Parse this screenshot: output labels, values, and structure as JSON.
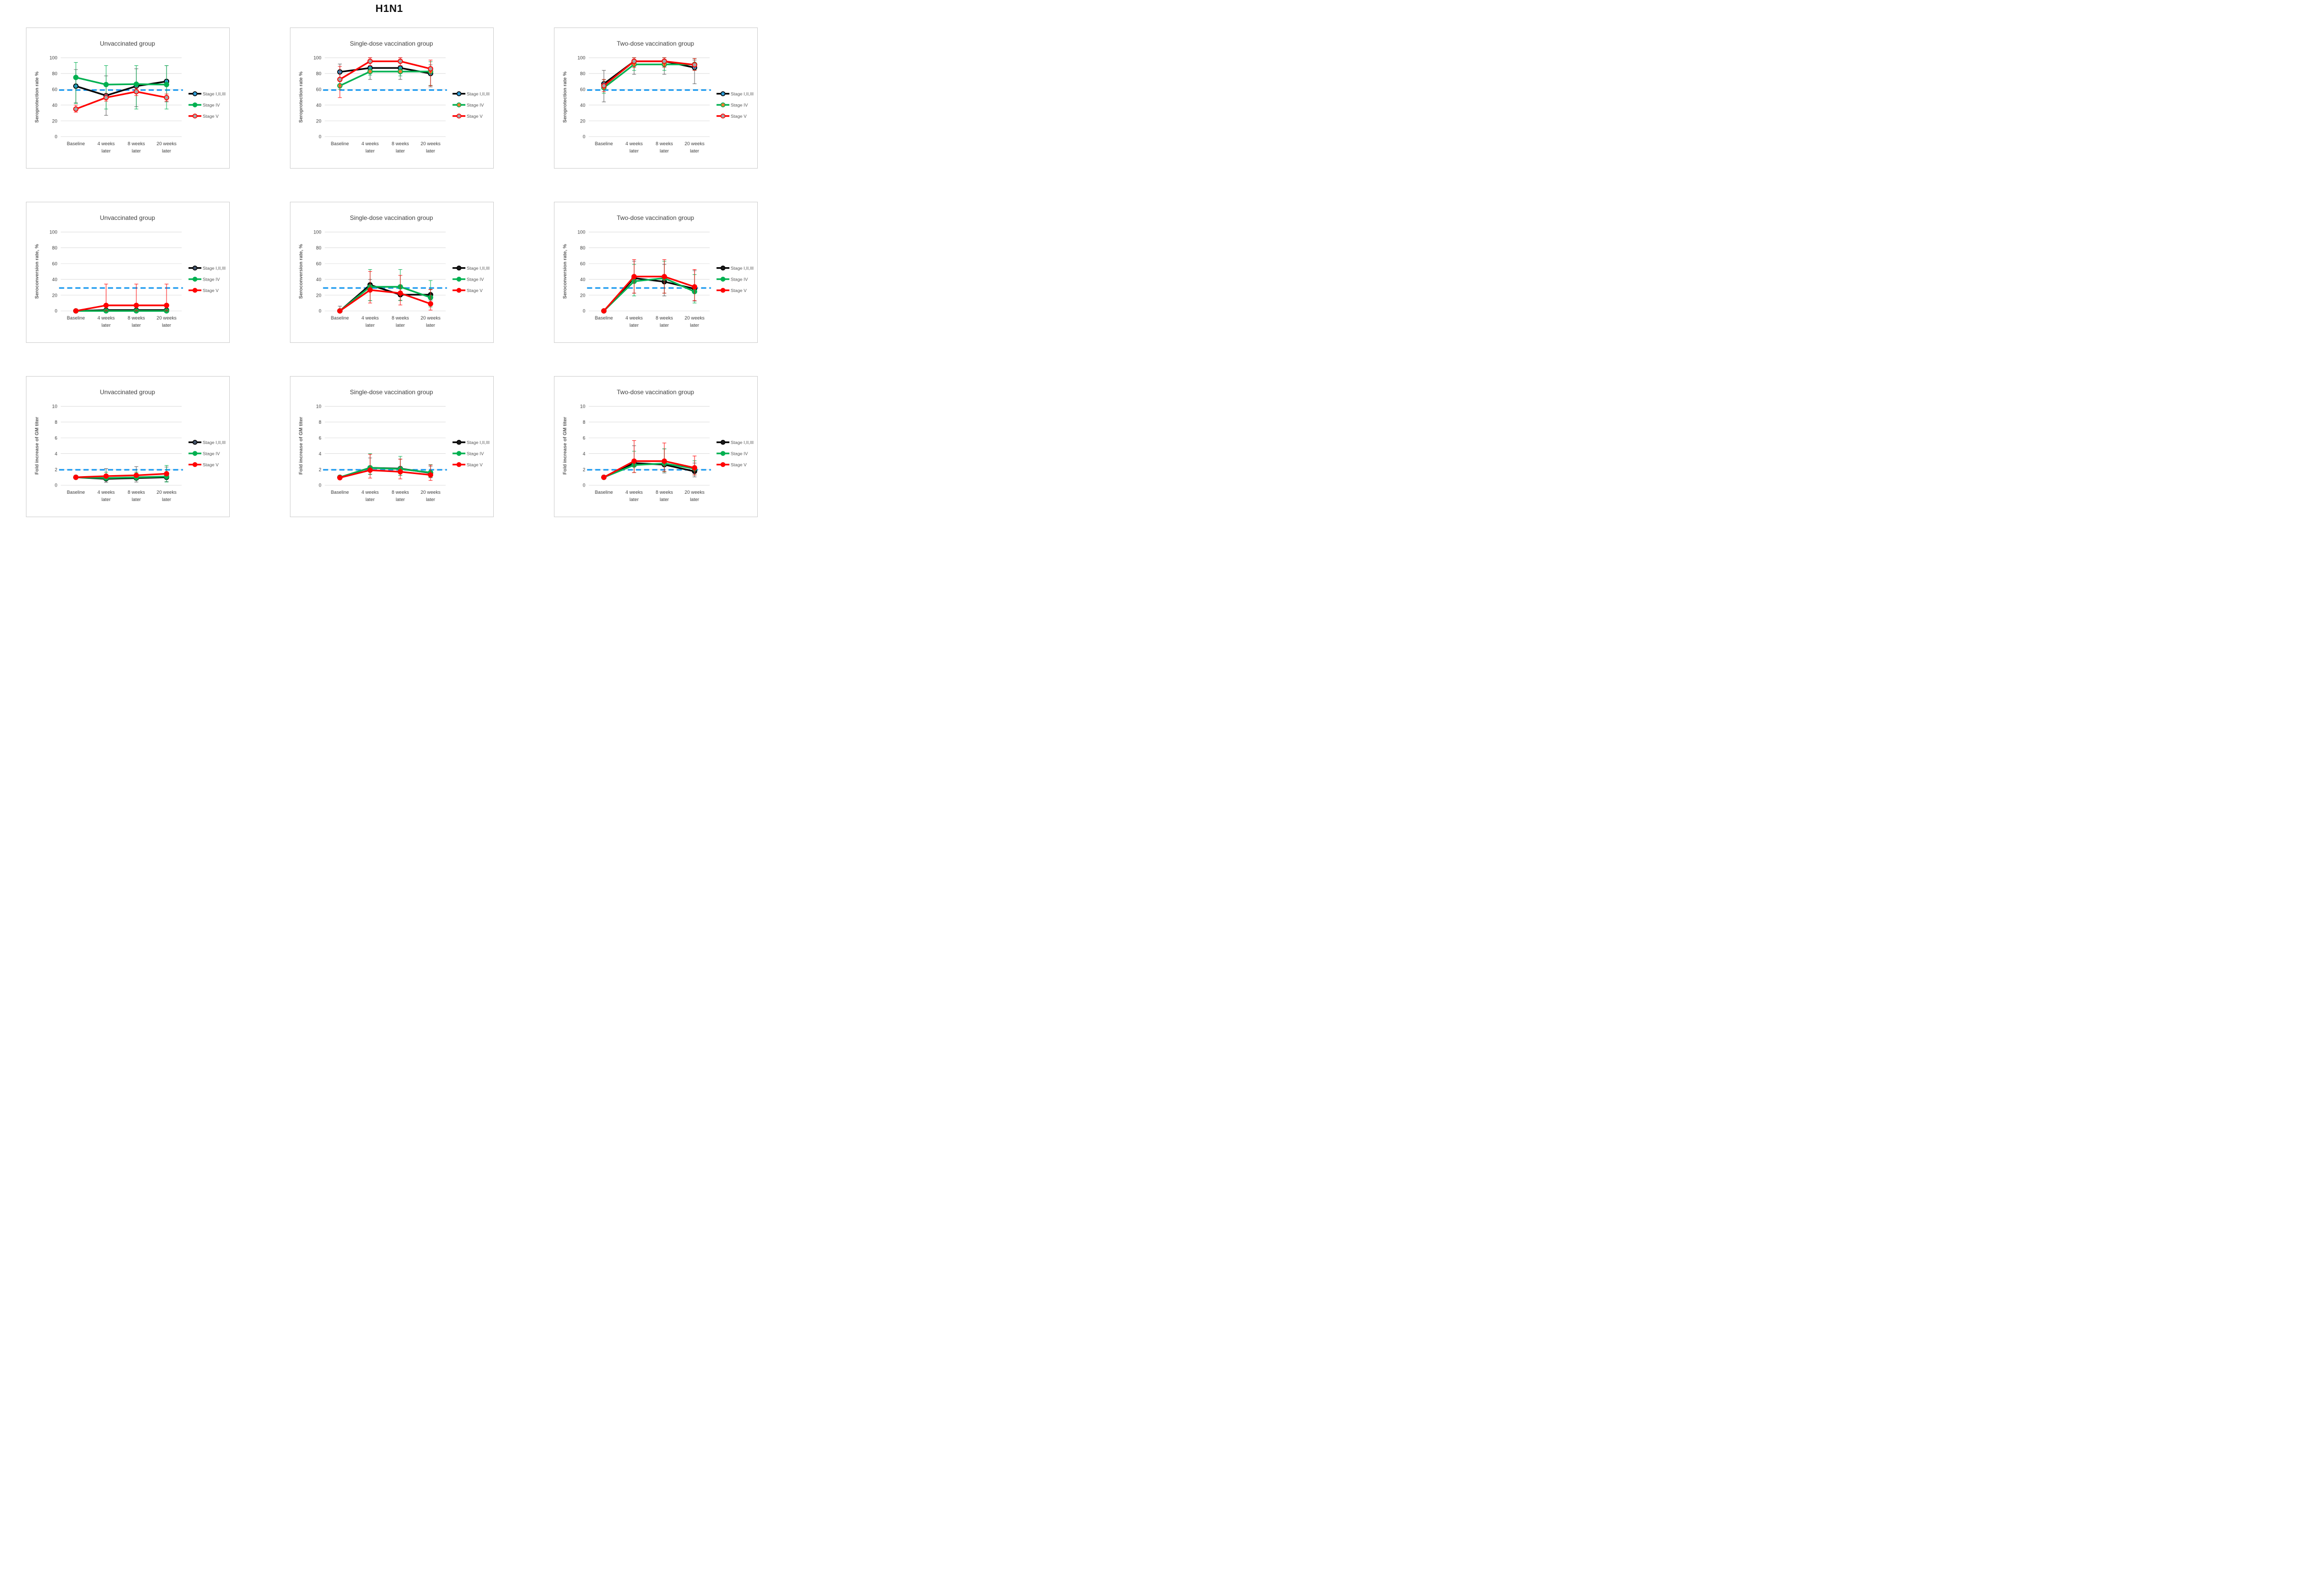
{
  "figure": {
    "title": "H1N1"
  },
  "legend_labels": [
    "Stage I,II,III",
    "Stage IV",
    "Stage V"
  ],
  "x_categories": [
    "Baseline",
    "4 weeks later",
    "8 weeks later",
    "20 weeks later"
  ],
  "x_tick_lines": [
    [
      "Baseline"
    ],
    [
      "4 weeks",
      "later"
    ],
    [
      "8 weeks",
      "later"
    ],
    [
      "20 weeks",
      "later"
    ]
  ],
  "colors": {
    "stage123_line": "#000000",
    "stage4_line": "#00B050",
    "stage5_line": "#FF0000",
    "marker_blue": "#2E9BD6",
    "marker_orange": "#ED7D31",
    "marker_gray": "#A6A6A6",
    "marker_navy": "#44546A",
    "threshold": "#1E9BF0",
    "grid": "#D9D9D9",
    "text": "#595959",
    "tick_text": "#404040",
    "title_text": "#3F3F3F",
    "panel_border": "#CFCFCF"
  },
  "chart_data": [
    {
      "id": "seroprotection-unvaccinated",
      "type": "line",
      "title": "Unvaccinated group",
      "ylabel": "Seroprotection rate %",
      "ylim": [
        0,
        100
      ],
      "yticks": [
        0,
        20,
        40,
        60,
        80,
        100
      ],
      "threshold": 59,
      "grid": true,
      "legend_position": "right",
      "categories": [
        "Baseline",
        "4 weeks later",
        "8 weeks later",
        "20 weeks later"
      ],
      "series": [
        {
          "name": "Stage I,II,III",
          "color": "#000000",
          "marker_fill": "#2E9BD6",
          "marker_edge": "#000000",
          "err_color": "#595959",
          "values": [
            64,
            52,
            64,
            70
          ],
          "err_lo": [
            43,
            27,
            38,
            44
          ],
          "err_hi": [
            85,
            77,
            86,
            90
          ]
        },
        {
          "name": "Stage IV",
          "color": "#00B050",
          "marker_fill": "#00B050",
          "marker_edge": "#00B050",
          "err_color": "#00B050",
          "values": [
            75,
            66,
            66.5,
            66
          ],
          "err_lo": [
            42,
            35,
            35,
            35
          ],
          "err_hi": [
            94,
            90,
            90,
            90
          ]
        },
        {
          "name": "Stage V",
          "color": "#FF0000",
          "marker_fill": "#A6A6A6",
          "marker_edge": "#FF0000",
          "err_color": "#FF0000",
          "values": [
            35,
            49.5,
            57,
            49.5
          ],
          "err_lo": [
            31,
            45,
            52,
            45
          ],
          "err_hi": [
            40,
            54,
            62,
            54
          ]
        }
      ]
    },
    {
      "id": "seroprotection-single-dose",
      "type": "line",
      "title": "Single-dose vaccination group",
      "ylabel": "Seroprotection rate %",
      "ylim": [
        0,
        100
      ],
      "yticks": [
        0,
        20,
        40,
        60,
        80,
        100
      ],
      "threshold": 59,
      "grid": true,
      "legend_position": "right",
      "categories": [
        "Baseline",
        "4 weeks later",
        "8 weeks later",
        "20 weeks later"
      ],
      "series": [
        {
          "name": "Stage I,II,III",
          "color": "#000000",
          "marker_fill": "#2E9BD6",
          "marker_edge": "#000000",
          "err_color": "#595959",
          "values": [
            82,
            87,
            87,
            80
          ],
          "err_lo": [
            72,
            72.5,
            72.5,
            63
          ],
          "err_hi": [
            92,
            100,
            100,
            91
          ]
        },
        {
          "name": "Stage IV",
          "color": "#00B050",
          "marker_fill": "#ED7D31",
          "marker_edge": "#00B050",
          "err_color": "#00B050",
          "values": [
            64.5,
            82.5,
            82.5,
            82.5
          ],
          "err_lo": [
            60,
            78,
            77,
            65
          ],
          "err_hi": [
            70,
            87,
            87,
            95
          ]
        },
        {
          "name": "Stage V",
          "color": "#FF0000",
          "marker_fill": "#A6A6A6",
          "marker_edge": "#FF0000",
          "err_color": "#FF0000",
          "values": [
            72.5,
            95.5,
            95.5,
            86
          ],
          "err_lo": [
            49.5,
            90,
            90,
            64.5
          ],
          "err_hi": [
            89,
            100,
            100,
            97
          ]
        }
      ]
    },
    {
      "id": "seroprotection-two-dose",
      "type": "line",
      "title": "Two-dose vaccination group",
      "ylabel": "Seroprotection rate %",
      "ylim": [
        0,
        100
      ],
      "yticks": [
        0,
        20,
        40,
        60,
        80,
        100
      ],
      "threshold": 59,
      "grid": true,
      "legend_position": "right",
      "categories": [
        "Baseline",
        "4 weeks later",
        "8 weeks later",
        "20 weeks later"
      ],
      "series": [
        {
          "name": "Stage I,II,III",
          "color": "#000000",
          "marker_fill": "#2E9BD6",
          "marker_edge": "#000000",
          "err_color": "#595959",
          "values": [
            67,
            95.5,
            95.5,
            87.5
          ],
          "err_lo": [
            44,
            79,
            79,
            67
          ],
          "err_hi": [
            84,
            100,
            100,
            97
          ]
        },
        {
          "name": "Stage IV",
          "color": "#00B050",
          "marker_fill": "#ED7D31",
          "marker_edge": "#00B050",
          "err_color": "#00B050",
          "values": [
            62,
            91.5,
            91.5,
            91.5
          ],
          "err_lo": [
            55,
            84,
            84,
            84
          ],
          "err_hi": [
            72,
            100,
            100,
            99
          ]
        },
        {
          "name": "Stage V",
          "color": "#FF0000",
          "marker_fill": "#A6A6A6",
          "marker_edge": "#FF0000",
          "err_color": "#FF0000",
          "values": [
            64.5,
            95.5,
            95.5,
            91
          ],
          "err_lo": [
            57,
            87.5,
            88,
            84
          ],
          "err_hi": [
            72.5,
            100,
            100,
            99
          ]
        }
      ]
    },
    {
      "id": "seroconversion-unvaccinated",
      "type": "line",
      "title": "Unvaccinated group",
      "ylabel": "Seroconversion rate, %",
      "ylim": [
        0,
        100
      ],
      "yticks": [
        0,
        20,
        40,
        60,
        80,
        100
      ],
      "threshold": 29,
      "grid": true,
      "legend_position": "right",
      "categories": [
        "Baseline",
        "4 weeks later",
        "8 weeks later",
        "20 weeks later"
      ],
      "series": [
        {
          "name": "Stage I,II,III",
          "color": "#000000",
          "marker_fill": "#44546A",
          "marker_edge": "#000000",
          "err_color": "#595959",
          "values": [
            0,
            1,
            1,
            1
          ],
          "err_lo": [
            null,
            null,
            null,
            null
          ],
          "err_hi": [
            null,
            null,
            null,
            null
          ]
        },
        {
          "name": "Stage IV",
          "color": "#00B050",
          "marker_fill": "#00B050",
          "marker_edge": "#00B050",
          "err_color": "#00B050",
          "values": [
            0,
            0,
            0,
            0
          ],
          "err_lo": [
            null,
            null,
            null,
            null
          ],
          "err_hi": [
            null,
            null,
            null,
            null
          ]
        },
        {
          "name": "Stage V",
          "color": "#FF0000",
          "marker_fill": "#FF0000",
          "marker_edge": "#FF0000",
          "err_color": "#FF0000",
          "values": [
            0,
            7,
            7,
            7
          ],
          "err_lo": [
            null,
            0,
            0,
            0
          ],
          "err_hi": [
            null,
            34,
            34,
            34
          ]
        }
      ]
    },
    {
      "id": "seroconversion-single-dose",
      "type": "line",
      "title": "Single-dose vaccination group",
      "ylabel": "Seroconversion rate, %",
      "ylim": [
        0,
        100
      ],
      "yticks": [
        0,
        20,
        40,
        60,
        80,
        100
      ],
      "threshold": 29,
      "grid": true,
      "legend_position": "right",
      "categories": [
        "Baseline",
        "4 weeks later",
        "8 weeks later",
        "20 weeks later"
      ],
      "series": [
        {
          "name": "Stage I,II,III",
          "color": "#000000",
          "marker_fill": "#1A1A1A",
          "marker_edge": "#000000",
          "err_color": "#595959",
          "values": [
            0,
            33,
            20.5,
            20.5
          ],
          "err_lo": [
            0,
            13,
            13.5,
            13.5
          ],
          "err_hi": [
            6,
            40,
            28,
            27.5
          ]
        },
        {
          "name": "Stage IV",
          "color": "#00B050",
          "marker_fill": "#00B050",
          "marker_edge": "#00B050",
          "err_color": "#00B050",
          "values": [
            0,
            30.5,
            30.5,
            17
          ],
          "err_lo": [
            null,
            13,
            13,
            5
          ],
          "err_hi": [
            null,
            52.5,
            52.5,
            38.5
          ]
        },
        {
          "name": "Stage V",
          "color": "#FF0000",
          "marker_fill": "#FF0000",
          "marker_edge": "#FF0000",
          "err_color": "#FF0000",
          "values": [
            0,
            26.5,
            22.5,
            9
          ],
          "err_lo": [
            null,
            10,
            7.5,
            1
          ],
          "err_hi": [
            null,
            50,
            45,
            27
          ]
        }
      ]
    },
    {
      "id": "seroconversion-two-dose",
      "type": "line",
      "title": "Two-dose vaccination group",
      "ylabel": "Seroconversion rate, %",
      "ylim": [
        0,
        100
      ],
      "yticks": [
        0,
        20,
        40,
        60,
        80,
        100
      ],
      "threshold": 29,
      "grid": true,
      "legend_position": "right",
      "categories": [
        "Baseline",
        "4 weeks later",
        "8 weeks later",
        "20 weeks later"
      ],
      "series": [
        {
          "name": "Stage I,II,III",
          "color": "#000000",
          "marker_fill": "#1A1A1A",
          "marker_edge": "#000000",
          "err_color": "#595959",
          "values": [
            0,
            41.5,
            37,
            28
          ],
          "err_lo": [
            null,
            22.5,
            19,
            12.5
          ],
          "err_hi": [
            null,
            63,
            59,
            51
          ]
        },
        {
          "name": "Stage IV",
          "color": "#00B050",
          "marker_fill": "#00B050",
          "marker_edge": "#00B050",
          "err_color": "#00B050",
          "values": [
            0,
            37.5,
            41.5,
            24.5
          ],
          "err_lo": [
            null,
            19,
            22.5,
            10
          ],
          "err_hi": [
            null,
            59,
            63,
            46
          ]
        },
        {
          "name": "Stage V",
          "color": "#FF0000",
          "marker_fill": "#FF0000",
          "marker_edge": "#FF0000",
          "err_color": "#FF0000",
          "values": [
            0,
            43.5,
            43.5,
            30.5
          ],
          "err_lo": [
            null,
            22.5,
            22.5,
            13
          ],
          "err_hi": [
            null,
            65,
            65,
            52.5
          ]
        }
      ]
    },
    {
      "id": "gm-titer-unvaccinated",
      "type": "line",
      "title": "Unvaccinated group",
      "ylabel": "Fold increase of GM titer",
      "ylim": [
        0,
        10
      ],
      "yticks": [
        0,
        2,
        4,
        6,
        8,
        10
      ],
      "threshold": 1.95,
      "grid": true,
      "legend_position": "right",
      "categories": [
        "Baseline",
        "4 weeks later",
        "8 weeks later",
        "20 weeks later"
      ],
      "series": [
        {
          "name": "Stage I,II,III",
          "color": "#000000",
          "marker_fill": "#44546A",
          "marker_edge": "#000000",
          "err_color": "#595959",
          "values": [
            1,
            0.8,
            0.9,
            1
          ],
          "err_lo": [
            null,
            0.35,
            0.4,
            0.45
          ],
          "err_hi": [
            null,
            2.1,
            2.35,
            2.3
          ]
        },
        {
          "name": "Stage IV",
          "color": "#00B050",
          "marker_fill": "#00B050",
          "marker_edge": "#00B050",
          "err_color": "#00B050",
          "values": [
            1,
            0.9,
            1,
            1.1
          ],
          "err_lo": [
            null,
            0.6,
            0.65,
            0.4
          ],
          "err_hi": [
            null,
            1.65,
            1.65,
            2.5
          ]
        },
        {
          "name": "Stage V",
          "color": "#FF0000",
          "marker_fill": "#FF0000",
          "marker_edge": "#FF0000",
          "err_color": "#FF0000",
          "values": [
            1,
            1.15,
            1.25,
            1.45
          ],
          "err_lo": [
            null,
            null,
            null,
            null
          ],
          "err_hi": [
            null,
            null,
            null,
            null
          ]
        }
      ]
    },
    {
      "id": "gm-titer-single-dose",
      "type": "line",
      "title": "Single-dose vaccination group",
      "ylabel": "Fold increase of GM titer",
      "ylim": [
        0,
        10
      ],
      "yticks": [
        0,
        2,
        4,
        6,
        8,
        10
      ],
      "threshold": 1.95,
      "grid": true,
      "legend_position": "right",
      "categories": [
        "Baseline",
        "4 weeks later",
        "8 weeks later",
        "20 weeks later"
      ],
      "series": [
        {
          "name": "Stage I,II,III",
          "color": "#000000",
          "marker_fill": "#1A1A1A",
          "marker_edge": "#000000",
          "err_color": "#595959",
          "values": [
            1,
            2.2,
            2.1,
            1.55
          ],
          "err_lo": [
            null,
            1.35,
            1.25,
            0.95
          ],
          "err_hi": [
            null,
            3.45,
            3.3,
            2.4
          ]
        },
        {
          "name": "Stage IV",
          "color": "#00B050",
          "marker_fill": "#00B050",
          "marker_edge": "#00B050",
          "err_color": "#00B050",
          "values": [
            1,
            2.2,
            2.05,
            1.6
          ],
          "err_lo": [
            null,
            1.4,
            1.25,
            1.0
          ],
          "err_hi": [
            null,
            4.0,
            3.65,
            2.6
          ]
        },
        {
          "name": "Stage V",
          "color": "#FF0000",
          "marker_fill": "#FF0000",
          "marker_edge": "#FF0000",
          "err_color": "#FF0000",
          "values": [
            0.95,
            1.9,
            1.7,
            1.3
          ],
          "err_lo": [
            null,
            0.9,
            0.8,
            0.6
          ],
          "err_hi": [
            null,
            3.9,
            3.3,
            2.55
          ]
        }
      ]
    },
    {
      "id": "gm-titer-two-dose",
      "type": "line",
      "title": "Two-dose vaccination group",
      "ylabel": "Fold increase of GM titer",
      "ylim": [
        0,
        10
      ],
      "yticks": [
        0,
        2,
        4,
        6,
        8,
        10
      ],
      "threshold": 1.95,
      "grid": true,
      "legend_position": "right",
      "categories": [
        "Baseline",
        "4 weeks later",
        "8 weeks later",
        "20 weeks later"
      ],
      "series": [
        {
          "name": "Stage I,II,III",
          "color": "#000000",
          "marker_fill": "#1A1A1A",
          "marker_edge": "#000000",
          "err_color": "#595959",
          "values": [
            1,
            2.8,
            2.6,
            1.75
          ],
          "err_lo": [
            null,
            1.6,
            1.55,
            1.05
          ],
          "err_hi": [
            null,
            5.0,
            4.6,
            2.8
          ]
        },
        {
          "name": "Stage IV",
          "color": "#00B050",
          "marker_fill": "#00B050",
          "marker_edge": "#00B050",
          "err_color": "#00B050",
          "values": [
            1,
            2.55,
            2.75,
            2.1
          ],
          "err_lo": [
            null,
            1.6,
            1.7,
            1.3
          ],
          "err_hi": [
            null,
            4.3,
            4.6,
            3.1
          ]
        },
        {
          "name": "Stage V",
          "color": "#FF0000",
          "marker_fill": "#FF0000",
          "marker_edge": "#FF0000",
          "err_color": "#FF0000",
          "values": [
            1,
            3.05,
            3.05,
            2.2
          ],
          "err_lo": [
            null,
            1.6,
            1.75,
            1.3
          ],
          "err_hi": [
            null,
            5.65,
            5.35,
            3.7
          ]
        }
      ]
    }
  ]
}
